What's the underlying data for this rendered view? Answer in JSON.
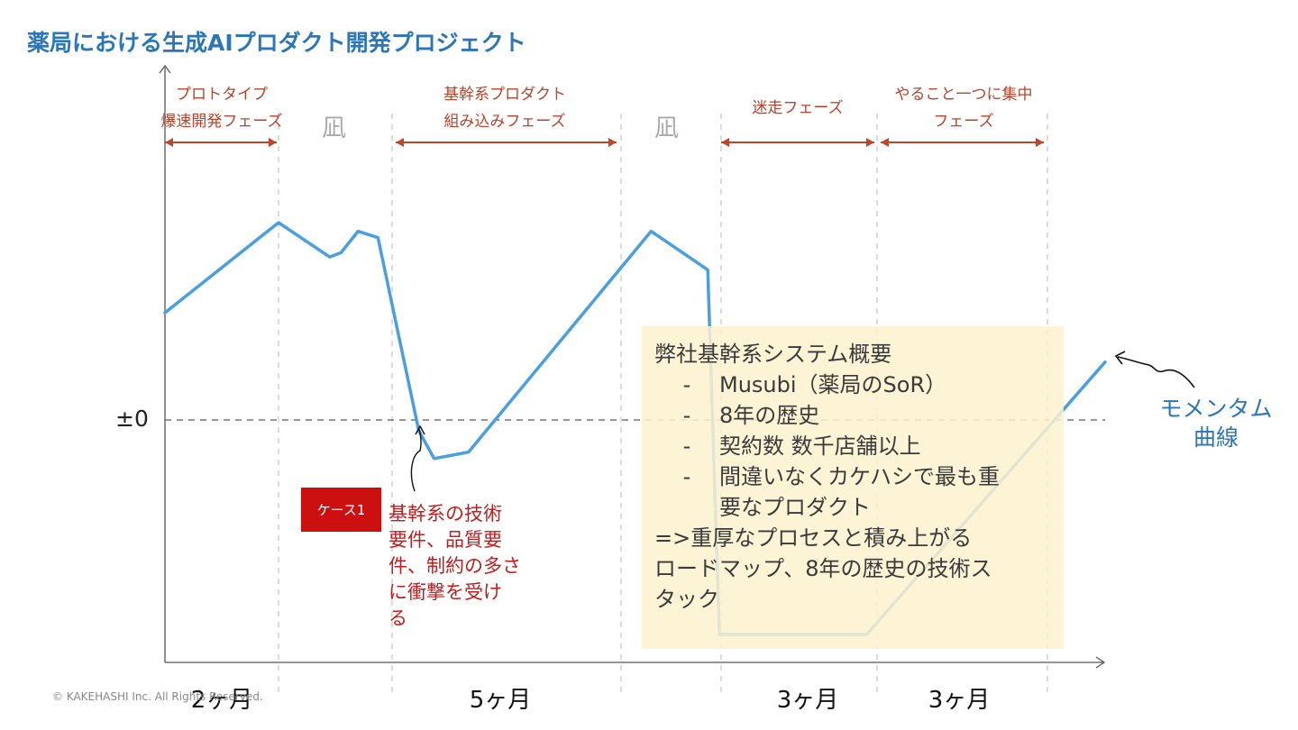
{
  "header": {
    "title": "薬局における生成AIプロダクト開発プロジェクト"
  },
  "phases": [
    {
      "lines": [
        "プロトタイプ",
        "爆速開発フェーズ"
      ]
    },
    {
      "lines": [
        "基幹系プロダクト",
        "組み込みフェーズ"
      ]
    },
    {
      "lines": [
        "迷走フェーズ",
        ""
      ]
    },
    {
      "lines": [
        "やること一つに集中",
        "フェーズ"
      ]
    }
  ],
  "lull_labels": [
    "凪",
    "凪"
  ],
  "zero_label": "±0",
  "durations": [
    "2ヶ月",
    "5ヶ月",
    "3ヶ月",
    "3ヶ月"
  ],
  "case": {
    "badge": "ケース1",
    "lines": [
      "基幹系の技術",
      "要件、品質要",
      "件、制約の多さ",
      "に衝撃を受け",
      "る"
    ]
  },
  "infobox": {
    "heading": "弊社基幹系システム概要",
    "bullets": [
      {
        "lines": [
          "Musubi（薬局のSoR）"
        ]
      },
      {
        "lines": [
          "8年の歴史"
        ]
      },
      {
        "lines": [
          "契約数 数千店舗以上"
        ]
      },
      {
        "lines": [
          "間違いなくカケハシで最も重",
          "要なプロダクト"
        ]
      }
    ],
    "conclusion_lines": [
      "=>重厚なプロセスと積み上がる",
      "ロードマップ、8年の歴史の技術ス",
      "タック"
    ]
  },
  "momentum_label": [
    "モメンタム",
    "曲線"
  ],
  "copyright": "© KAKEHASHI Inc. All Rights Reserved.",
  "chart_data": {
    "type": "line",
    "title": "薬局における生成AIプロダクト開発プロジェクト",
    "xlabel": "",
    "ylabel": "",
    "x_unit": "months",
    "xlim": [
      0,
      13
    ],
    "ylim": [
      -1,
      1.45
    ],
    "y_tick_labels": [
      {
        "y": 0,
        "label": "±0"
      }
    ],
    "grid": false,
    "series": [
      {
        "color": "#4a9fe0",
        "points": [
          [
            0,
            0.5
          ],
          [
            2,
            0.92
          ],
          [
            2.9,
            0.76
          ],
          [
            3.1,
            0.78
          ],
          [
            3.4,
            0.88
          ],
          [
            3.75,
            0.85
          ],
          [
            4.35,
            -0.05
          ],
          [
            4.55,
            -0.18
          ],
          [
            5.0,
            -0.15
          ],
          [
            7.9,
            0.88
          ],
          [
            9.6,
            0.7
          ],
          [
            9.95,
            -1.0
          ],
          [
            12.8,
            -1.0
          ],
          [
            14.05,
            0.27
          ]
        ]
      }
    ],
    "phase_boundaries_months": [
      2,
      4,
      7,
      10,
      13
    ]
  }
}
